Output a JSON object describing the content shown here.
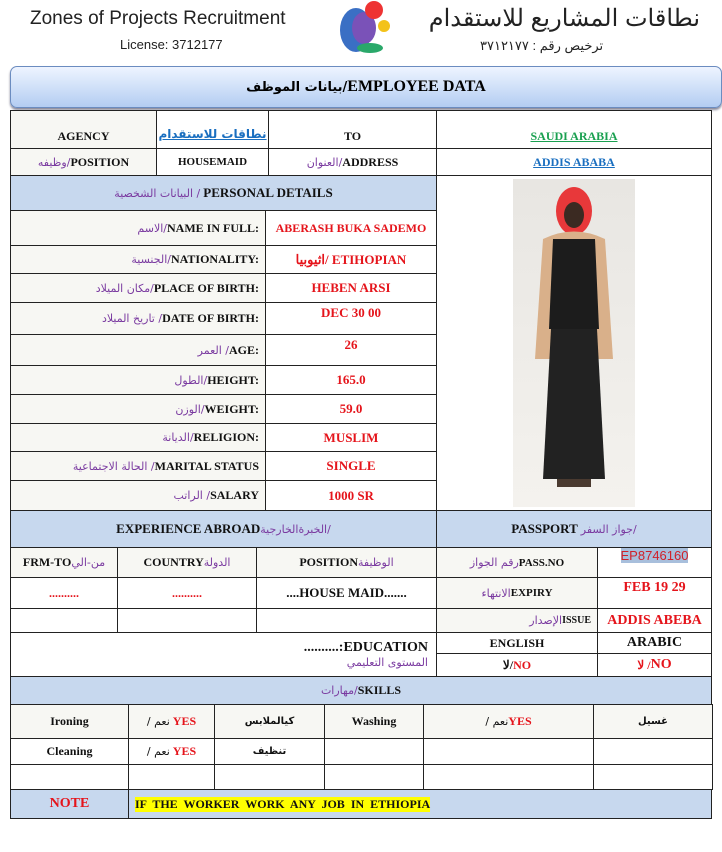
{
  "header": {
    "company_en": "Zones of Projects Recruitment",
    "license_en": "License: 3712177",
    "company_ar": "نطاقات المشاريع للاستقدام",
    "license_ar": "ترخيص رقم : ٣٧١٢١٧٧"
  },
  "title": {
    "en": "EMPLOYEE DATA",
    "ar": "بيانات الموظف/"
  },
  "top": {
    "agency_label": "AGENCY",
    "agency_value": "نطاقات للاستقدام",
    "to_label": "TO",
    "to_value": "SAUDI ARABIA",
    "position_label": "POSITION",
    "position_ar": "وظيفه/",
    "position_value": "HOUSEMAID",
    "address_label": "ADDRESS",
    "address_ar": "العنوان/",
    "address_value": "ADDIS ABABA"
  },
  "personal": {
    "header_en": "PERSONAL DETAILS",
    "header_ar": "البيانات الشخصية  / ",
    "rows": [
      {
        "ar": "الاسم/",
        "en": "NAME IN FULL:",
        "value": "ABERASH BUKA SADEMO"
      },
      {
        "ar": "الجنسية/",
        "en": "NATIONALITY:",
        "value": "اثيوبيا/ ETIHOPIAN"
      },
      {
        "ar": "مكان الميلاد/",
        "en": "PLACE OF BIRTH:",
        "value": "HEBEN ARSI"
      },
      {
        "ar": "تاريخ الميلاد /",
        "en": "DATE OF BIRTH:",
        "value": "DEC 30 00"
      },
      {
        "ar": "العمر /",
        "en": "AGE:",
        "value": "26"
      },
      {
        "ar": "الطول/",
        "en": "HEIGHT:",
        "value": "165.0"
      },
      {
        "ar": "الوزن/",
        "en": "WEIGHT:",
        "value": "59.0"
      },
      {
        "ar": "الديانة/",
        "en": "RELIGION:",
        "value": "MUSLIM"
      },
      {
        "ar": "الحالة الاجتماعية /",
        "en": "MARITAL STATUS",
        "value": "SINGLE"
      },
      {
        "ar": "الراتب /",
        "en": "SALARY",
        "value": "1000 SR"
      }
    ]
  },
  "experience": {
    "header_en": "EXPERIENCE ABROAD",
    "header_ar": "الخبرةالخارجية/",
    "col_from": "FRM-TO",
    "col_from_ar": "من-الي",
    "col_country": "COUNTRY",
    "col_country_ar": "الدولة",
    "col_position": "POSITION",
    "col_position_ar": "الوظيفة",
    "row_from": "..........",
    "row_country": "..........",
    "row_position": "....HOUSE MAID......."
  },
  "passport": {
    "header_en": "PASSPORT",
    "header_ar": "جواز السفر/ ",
    "no_label": "PASS.NO",
    "no_ar": "رقم الجواز",
    "no_value": "EP8746160",
    "expiry_label": "EXPIRY",
    "expiry_ar": "الانتهاء",
    "expiry_value": "FEB 19 29",
    "issue_label": "ISSUE",
    "issue_ar": "الإصدار",
    "issue_value": "ADDIS ABEBA"
  },
  "education": {
    "label": "..........:EDUCATION",
    "ar": "المستوى التعليمي"
  },
  "languages": {
    "english": "ENGLISH",
    "arabic": "ARABIC",
    "english_value": "NO",
    "english_ar": "لا/ ",
    "arabic_value": "NO",
    "arabic_ar": "لا / "
  },
  "skills": {
    "header_en": "SKILLS",
    "header_ar": "مهارات/",
    "rows": [
      {
        "en": "Ironing",
        "value": "YES",
        "value_ar": "/ نعم",
        "ar": "كيالملابس",
        "en2": "Washing",
        "value2": "YES",
        "value2_ar": "/ نعم",
        "ar2": "غسيل"
      },
      {
        "en": "Cleaning",
        "value": "YES",
        "value_ar": "/ نعم",
        "ar": "تنظيف"
      }
    ]
  },
  "note": {
    "label": "NOTE",
    "text": "IF THE WORKER WORK ANY JOB IN ETHIOPIA"
  }
}
